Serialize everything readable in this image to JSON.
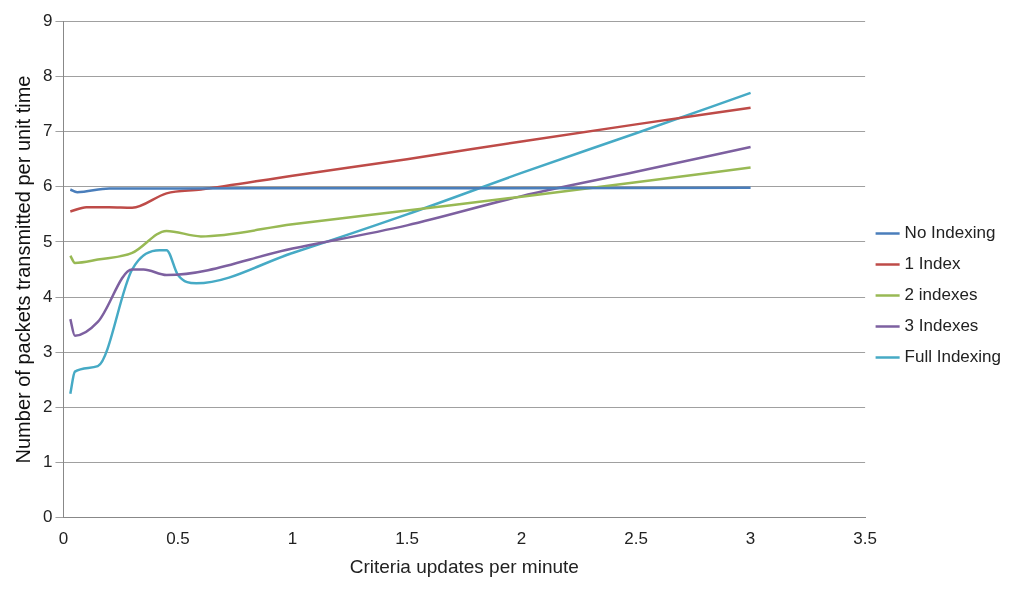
{
  "chart_data": {
    "type": "line",
    "xlabel": "Criteria updates per minute",
    "ylabel": "Number of packets transmitted per unit time",
    "xlim": [
      0,
      3.5
    ],
    "xticks": [
      0,
      0.5,
      1,
      1.5,
      2,
      2.5,
      3,
      3.5
    ],
    "ylim": [
      0,
      9
    ],
    "yticks": [
      0,
      1,
      2,
      3,
      4,
      5,
      6,
      7,
      8,
      9
    ],
    "grid": "y",
    "legend": "right",
    "marker": "none",
    "line_style": "solid",
    "series": [
      {
        "name": "No Indexing",
        "color": "#4a7ebb",
        "x": [
          0.03,
          0.06,
          0.2,
          0.5,
          3
        ],
        "values": [
          5.95,
          5.9,
          5.97,
          5.97,
          5.98
        ]
      },
      {
        "name": "1 Index",
        "color": "#be4b48",
        "x": [
          0.03,
          0.1,
          0.2,
          0.3,
          0.45,
          0.6,
          1,
          1.5,
          2,
          2.5,
          3
        ],
        "values": [
          5.55,
          5.63,
          5.63,
          5.62,
          5.88,
          5.95,
          6.2,
          6.5,
          6.82,
          7.13,
          7.43
        ]
      },
      {
        "name": "2 indexes",
        "color": "#98b954",
        "x": [
          0.03,
          0.05,
          0.15,
          0.3,
          0.45,
          0.6,
          1,
          1.5,
          2,
          2.5,
          3
        ],
        "values": [
          4.75,
          4.62,
          4.68,
          4.8,
          5.2,
          5.1,
          5.32,
          5.57,
          5.82,
          6.08,
          6.35
        ]
      },
      {
        "name": "3 Indexes",
        "color": "#7d60a0",
        "x": [
          0.03,
          0.05,
          0.15,
          0.3,
          0.35,
          0.45,
          1,
          1.5,
          2,
          2.5,
          3
        ],
        "values": [
          3.6,
          3.3,
          3.55,
          4.5,
          4.5,
          4.4,
          4.88,
          5.3,
          5.83,
          6.27,
          6.72
        ]
      },
      {
        "name": "Full Indexing",
        "color": "#46aac5",
        "x": [
          0.03,
          0.05,
          0.15,
          0.3,
          0.42,
          0.45,
          0.5,
          0.58,
          1,
          1.5,
          2,
          2.5,
          3
        ],
        "values": [
          2.25,
          2.65,
          2.75,
          4.5,
          4.85,
          4.85,
          4.4,
          4.25,
          4.8,
          5.5,
          6.25,
          6.97,
          7.7
        ]
      }
    ]
  }
}
